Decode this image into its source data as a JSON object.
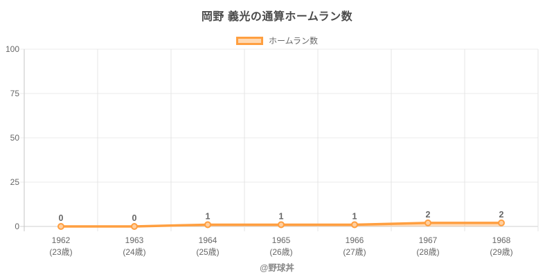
{
  "title": "岡野 義光の通算ホームラン数",
  "legend": {
    "label": "ホームラン数"
  },
  "footer": "@野球丼",
  "colors": {
    "accent": "#ff9f40",
    "area_fill": "rgba(255,159,64,0.35)",
    "point_fill": "#ffd0a1",
    "legend_fill": "#ffd9b3",
    "grid": "#ebebeb",
    "vgrid": "#e4e4e4",
    "axis": "#c6c6c6",
    "baseline": "#cfcfcf",
    "tick_text": "#666666",
    "title_text": "#4a4a4a",
    "footer_text": "#888888"
  },
  "chart_data": {
    "type": "line",
    "title": "岡野 義光の通算ホームラン数",
    "series_name": "ホームラン数",
    "categories": [
      "1962",
      "1963",
      "1964",
      "1965",
      "1966",
      "1967",
      "1968"
    ],
    "category_sublabels": [
      "(23歳)",
      "(24歳)",
      "(25歳)",
      "(26歳)",
      "(27歳)",
      "(28歳)",
      "(29歳)"
    ],
    "values": [
      0,
      0,
      1,
      1,
      1,
      2,
      2
    ],
    "data_labels": [
      "0",
      "0",
      "1",
      "1",
      "1",
      "2",
      "2"
    ],
    "ylim": [
      0,
      100
    ],
    "yticks": [
      0,
      25,
      50,
      75,
      100
    ],
    "grid": true,
    "area_fill": true,
    "legend_position": "top",
    "xlabel": "",
    "ylabel": ""
  }
}
